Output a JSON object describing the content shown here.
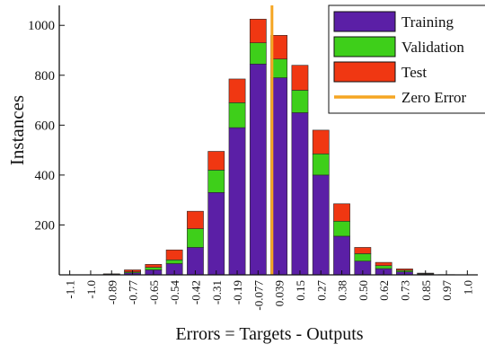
{
  "chart_data": {
    "type": "bar",
    "stacked": true,
    "xlabel": "Errors = Targets - Outputs",
    "ylabel": "Instances",
    "ylim": [
      0,
      1080
    ],
    "yticks": [
      200,
      400,
      600,
      800,
      1000
    ],
    "categories": [
      "-1.1",
      "-1.0",
      "-0.89",
      "-0.77",
      "-0.65",
      "-0.54",
      "-0.42",
      "-0.31",
      "-0.19",
      "-0.077",
      "0.039",
      "0.15",
      "0.27",
      "0.38",
      "0.50",
      "0.62",
      "0.73",
      "0.85",
      "0.97",
      "1.0"
    ],
    "series": [
      {
        "name": "Training",
        "color": "#5b1fa6",
        "values": [
          0,
          0,
          2,
          8,
          20,
          45,
          110,
          330,
          590,
          845,
          790,
          650,
          400,
          155,
          55,
          25,
          12,
          3,
          1,
          0
        ]
      },
      {
        "name": "Validation",
        "color": "#3ecf1a",
        "values": [
          0,
          0,
          1,
          4,
          10,
          15,
          75,
          90,
          100,
          85,
          75,
          90,
          85,
          60,
          30,
          12,
          6,
          2,
          0,
          0
        ]
      },
      {
        "name": "Test",
        "color": "#f03712",
        "values": [
          0,
          0,
          1,
          8,
          12,
          40,
          70,
          75,
          95,
          95,
          95,
          100,
          95,
          70,
          25,
          13,
          6,
          2,
          0,
          0
        ]
      }
    ],
    "reference_line": {
      "name": "Zero Error",
      "x": 0,
      "color": "#f5a623"
    },
    "legend_position": "top-right",
    "grid": false
  }
}
